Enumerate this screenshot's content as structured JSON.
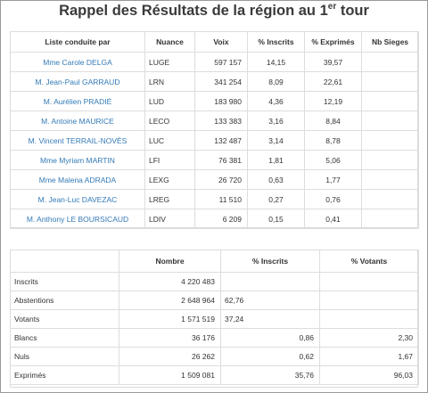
{
  "title_main": "Rappel des Résultats de la région au 1",
  "title_sup": "er",
  "title_end": " tour",
  "results": {
    "headers": [
      "Liste conduite par",
      "Nuance",
      "Voix",
      "% Inscrits",
      "% Exprimés",
      "Nb Sieges"
    ],
    "rows": [
      {
        "name": "Mme Carole DELGA",
        "nuance": "LUGE",
        "voix": "597 157",
        "inscrits": "14,15",
        "exprimes": "39,57",
        "sieges": ""
      },
      {
        "name": "M. Jean-Paul GARRAUD",
        "nuance": "LRN",
        "voix": "341 254",
        "inscrits": "8,09",
        "exprimes": "22,61",
        "sieges": ""
      },
      {
        "name": "M. Aurélien PRADIÉ",
        "nuance": "LUD",
        "voix": "183 980",
        "inscrits": "4,36",
        "exprimes": "12,19",
        "sieges": ""
      },
      {
        "name": "M. Antoine MAURICE",
        "nuance": "LECO",
        "voix": "133 383",
        "inscrits": "3,16",
        "exprimes": "8,84",
        "sieges": ""
      },
      {
        "name": "M. Vincent TERRAIL-NOVÈS",
        "nuance": "LUC",
        "voix": "132 487",
        "inscrits": "3,14",
        "exprimes": "8,78",
        "sieges": ""
      },
      {
        "name": "Mme Myriam MARTIN",
        "nuance": "LFI",
        "voix": "76 381",
        "inscrits": "1,81",
        "exprimes": "5,06",
        "sieges": ""
      },
      {
        "name": "Mme Malena ADRADA",
        "nuance": "LEXG",
        "voix": "26 720",
        "inscrits": "0,63",
        "exprimes": "1,77",
        "sieges": ""
      },
      {
        "name": "M. Jean-Luc DAVEZAC",
        "nuance": "LREG",
        "voix": "11 510",
        "inscrits": "0,27",
        "exprimes": "0,76",
        "sieges": ""
      },
      {
        "name": "M. Anthony LE BOURSICAUD",
        "nuance": "LDIV",
        "voix": "6 209",
        "inscrits": "0,15",
        "exprimes": "0,41",
        "sieges": ""
      }
    ]
  },
  "summary": {
    "headers": [
      "",
      "Nombre",
      "% Inscrits",
      "% Votants"
    ],
    "rows": [
      {
        "label": "Inscrits",
        "nombre": "4 220 483",
        "inscrits": "",
        "votants": ""
      },
      {
        "label": "Abstentions",
        "nombre": "2 648 964",
        "inscrits": "62,76",
        "votants": ""
      },
      {
        "label": "Votants",
        "nombre": "1 571 519",
        "inscrits": "37,24",
        "votants": ""
      },
      {
        "label": "Blancs",
        "nombre": "36 176",
        "inscrits": "0,86",
        "votants": "2,30"
      },
      {
        "label": "Nuls",
        "nombre": "26 262",
        "inscrits": "0,62",
        "votants": "1,67"
      },
      {
        "label": "Exprimés",
        "nombre": "1 509 081",
        "inscrits": "35,76",
        "votants": "96,03"
      }
    ]
  }
}
